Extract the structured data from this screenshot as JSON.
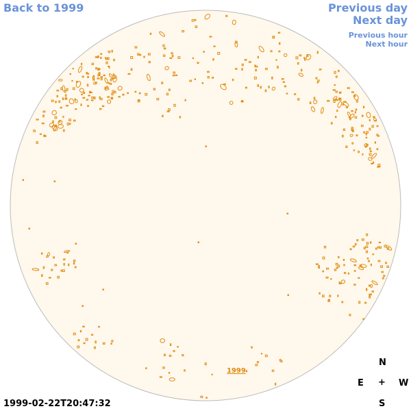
{
  "nav": {
    "back": "Back to 1999",
    "previous_day": "Previous day",
    "next_day": "Next day",
    "previous_hour": "Previous hour",
    "next_hour": "Next hour"
  },
  "compass": {
    "north": "N",
    "east": "E",
    "center": "+",
    "west": "W",
    "south": "S"
  },
  "timestamp": "1999-02-22T20:47:32",
  "year_label": "1999",
  "colors": {
    "disk_fill": "#fff8ec",
    "disk_stroke": "#bbbbbb",
    "mark": "#e08a10",
    "link": "#6a93d8"
  }
}
